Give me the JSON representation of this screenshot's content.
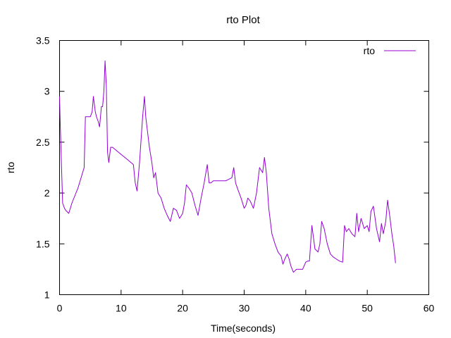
{
  "chart_data": {
    "type": "line",
    "title": "rto Plot",
    "xlabel": "Time(seconds)",
    "ylabel": "rto",
    "xlim": [
      0,
      60
    ],
    "ylim": [
      1,
      3.5
    ],
    "xticks": [
      0,
      10,
      20,
      30,
      40,
      50,
      60
    ],
    "yticks": [
      1,
      1.5,
      2,
      2.5,
      3,
      3.5
    ],
    "xtick_labels": [
      "0",
      "10",
      "20",
      "30",
      "40",
      "50",
      "60"
    ],
    "ytick_labels": [
      "1",
      "1.5",
      "2",
      "2.5",
      "3",
      "3.5"
    ],
    "grid": false,
    "legend": "top-right",
    "series": [
      {
        "name": "rto",
        "color": "#9400d3",
        "x": [
          0,
          0.1,
          0.3,
          0.5,
          0.8,
          1.0,
          1.5,
          2.0,
          3.0,
          4.0,
          4.2,
          5.0,
          5.3,
          5.5,
          5.8,
          6.0,
          6.3,
          6.5,
          6.8,
          7.0,
          7.2,
          7.4,
          7.6,
          7.8,
          8.0,
          8.3,
          8.6,
          9.0,
          10.0,
          11.0,
          12.0,
          12.3,
          12.6,
          13.0,
          13.5,
          13.8,
          14.0,
          14.3,
          14.6,
          15.0,
          15.3,
          15.6,
          16.0,
          16.5,
          17.0,
          17.5,
          18.0,
          18.5,
          19.0,
          19.5,
          20.0,
          20.3,
          20.6,
          21.0,
          21.5,
          22.0,
          22.5,
          23.0,
          23.5,
          24.0,
          24.3,
          24.6,
          25.0,
          26.0,
          27.0,
          28.0,
          28.3,
          28.6,
          29.0,
          29.5,
          30.0,
          30.3,
          30.6,
          31.0,
          31.5,
          32.0,
          32.5,
          33.0,
          33.3,
          33.6,
          34.0,
          34.5,
          35.0,
          35.5,
          36.0,
          36.3,
          36.6,
          37.0,
          37.3,
          37.6,
          38.0,
          38.5,
          39.0,
          39.5,
          40.0,
          40.3,
          40.6,
          41.0,
          41.5,
          42.0,
          42.3,
          42.6,
          43.0,
          43.5,
          44.0,
          44.5,
          45.0,
          45.5,
          46.0,
          46.3,
          46.6,
          47.0,
          47.5,
          48.0,
          48.3,
          48.6,
          49.0,
          49.5,
          50.0,
          50.3,
          50.6,
          51.0,
          51.5,
          52.0,
          52.3,
          52.6,
          53.0,
          53.3,
          53.6,
          54.0,
          54.3,
          54.6
        ],
        "values": [
          2.95,
          2.7,
          2.3,
          1.9,
          1.85,
          1.83,
          1.8,
          1.9,
          2.05,
          2.25,
          2.75,
          2.75,
          2.8,
          2.95,
          2.8,
          2.75,
          2.7,
          2.65,
          2.85,
          2.85,
          3.0,
          3.3,
          3.05,
          2.4,
          2.3,
          2.45,
          2.45,
          2.43,
          2.38,
          2.33,
          2.28,
          2.1,
          2.02,
          2.3,
          2.75,
          2.95,
          2.75,
          2.6,
          2.45,
          2.3,
          2.15,
          2.2,
          2.0,
          1.95,
          1.85,
          1.78,
          1.72,
          1.85,
          1.83,
          1.75,
          1.8,
          1.9,
          2.08,
          2.05,
          2.0,
          1.88,
          1.78,
          1.95,
          2.1,
          2.28,
          2.1,
          2.1,
          2.12,
          2.12,
          2.12,
          2.15,
          2.25,
          2.1,
          2.03,
          1.95,
          1.85,
          1.88,
          1.95,
          1.92,
          1.85,
          2.0,
          2.25,
          2.2,
          2.35,
          2.2,
          1.85,
          1.6,
          1.5,
          1.42,
          1.38,
          1.3,
          1.35,
          1.4,
          1.35,
          1.28,
          1.22,
          1.25,
          1.25,
          1.25,
          1.32,
          1.33,
          1.33,
          1.68,
          1.45,
          1.42,
          1.5,
          1.72,
          1.65,
          1.5,
          1.4,
          1.37,
          1.35,
          1.33,
          1.32,
          1.68,
          1.62,
          1.65,
          1.6,
          1.57,
          1.8,
          1.62,
          1.75,
          1.65,
          1.68,
          1.62,
          1.82,
          1.87,
          1.65,
          1.52,
          1.7,
          1.6,
          1.72,
          1.93,
          1.8,
          1.6,
          1.48,
          1.31
        ]
      }
    ]
  }
}
